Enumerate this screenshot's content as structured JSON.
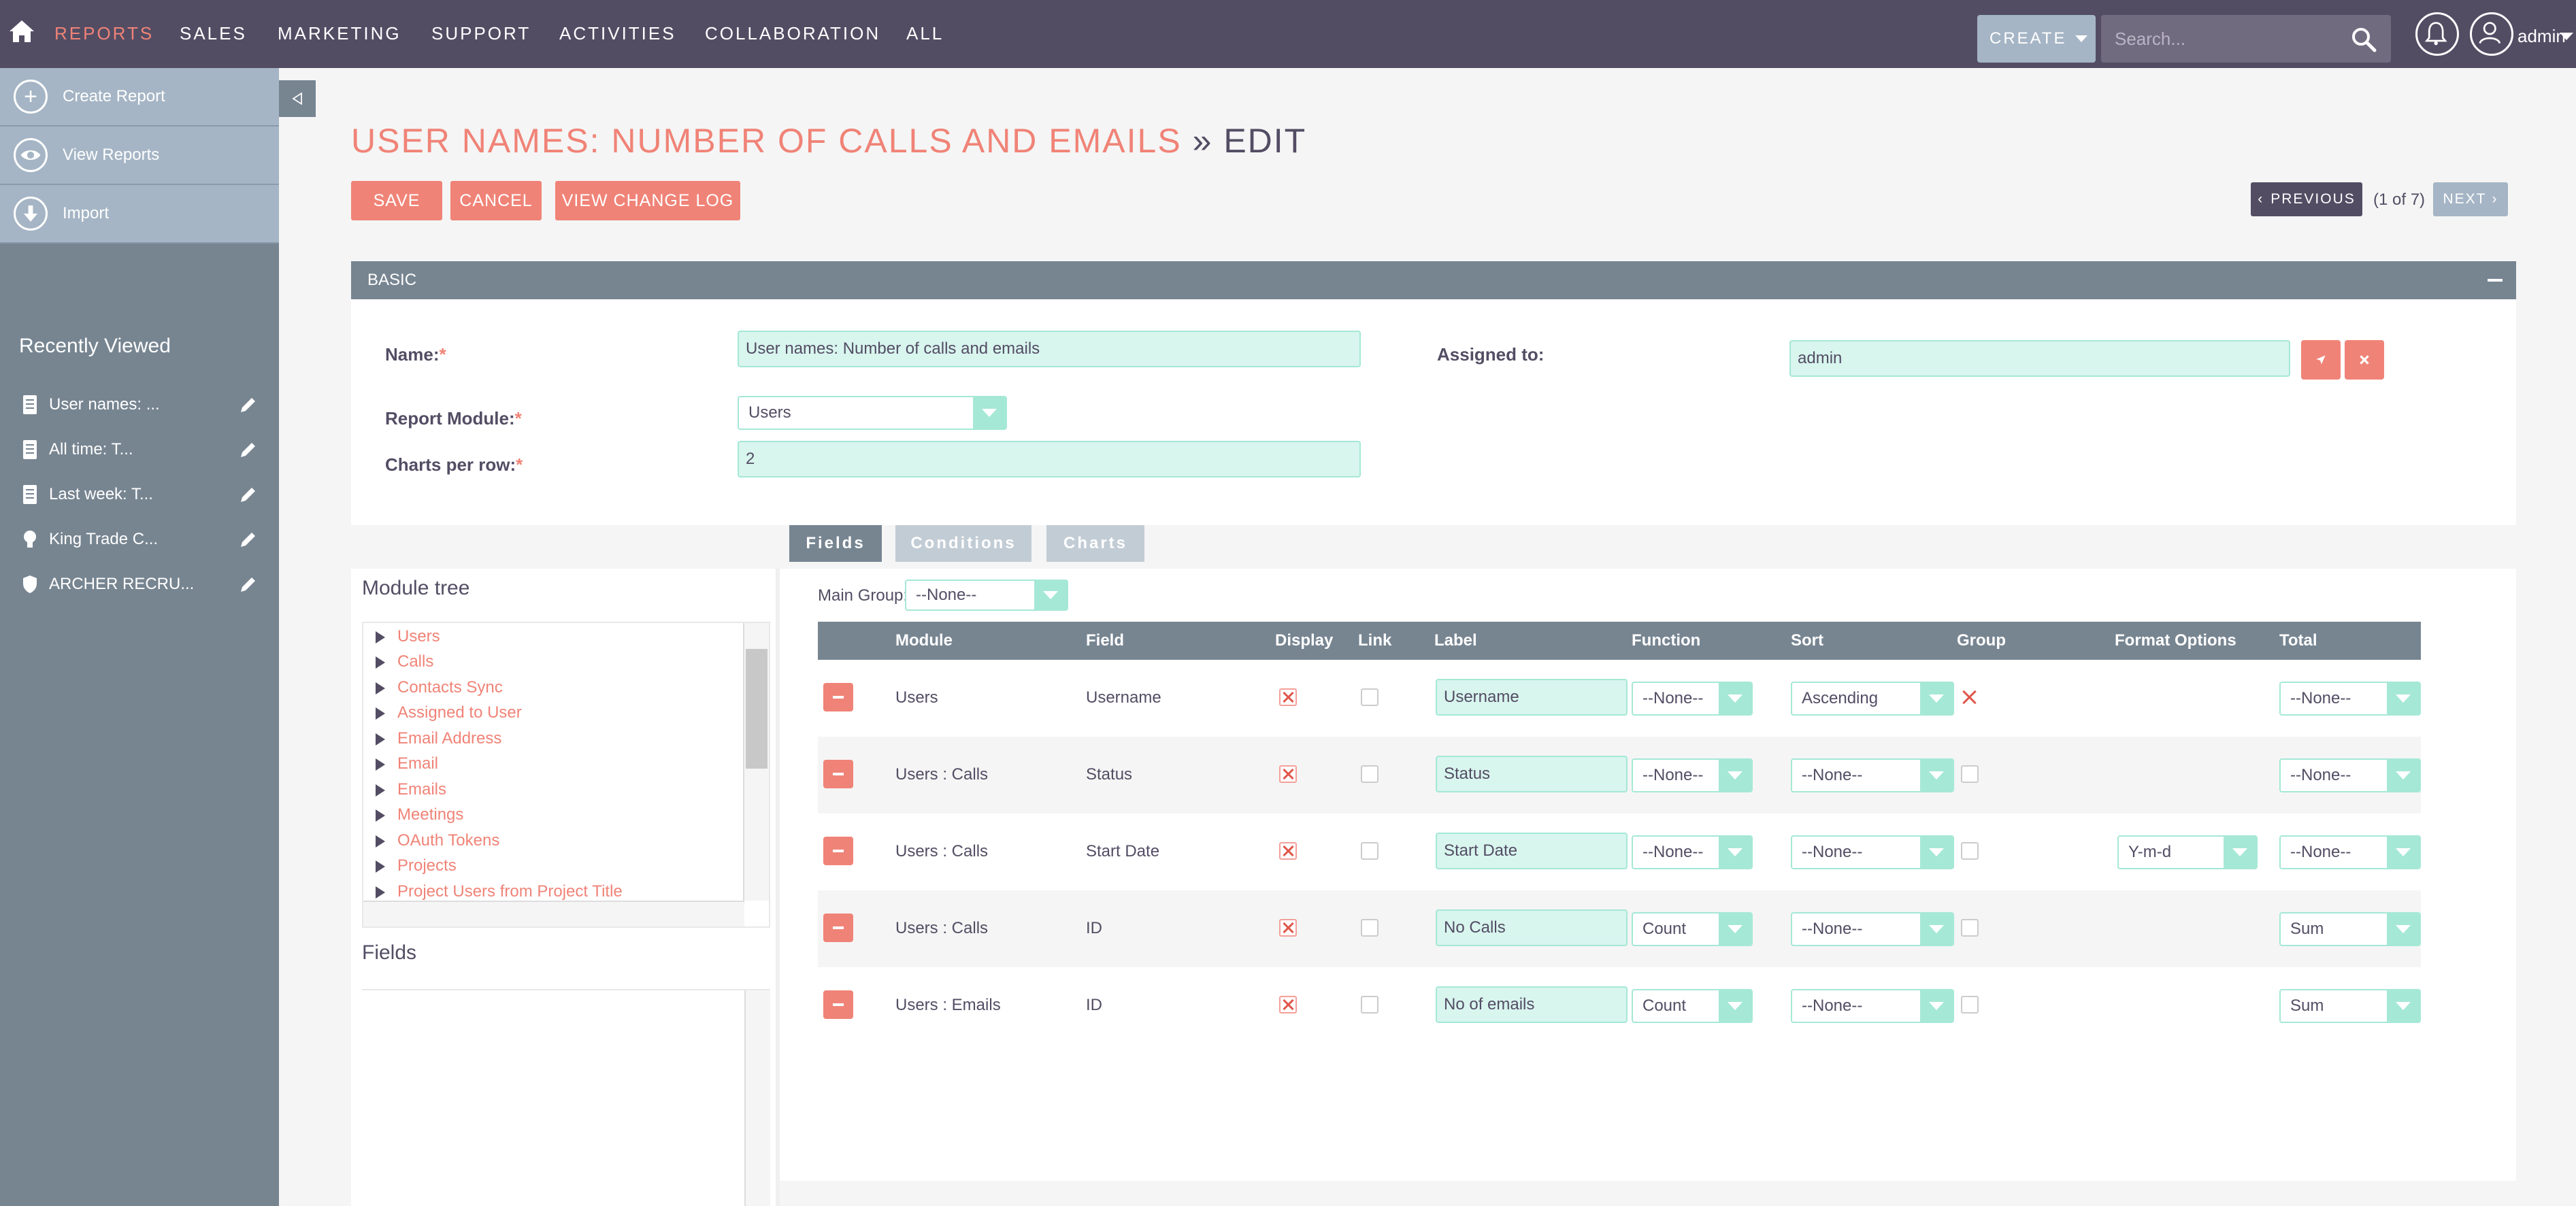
{
  "nav": {
    "items": [
      "REPORTS",
      "SALES",
      "MARKETING",
      "SUPPORT",
      "ACTIVITIES",
      "COLLABORATION",
      "ALL"
    ],
    "create_label": "CREATE",
    "search_placeholder": "Search...",
    "user_label": "admin"
  },
  "sidebar": {
    "actions": [
      {
        "label": "Create Report",
        "icon": "plus-icon"
      },
      {
        "label": "View Reports",
        "icon": "eye-icon"
      },
      {
        "label": "Import",
        "icon": "download-icon"
      }
    ],
    "recent_title": "Recently Viewed",
    "recent": [
      {
        "label": "User names: ...",
        "icon": "report-icon"
      },
      {
        "label": "All time: T...",
        "icon": "report-icon"
      },
      {
        "label": "Last week: T...",
        "icon": "report-icon"
      },
      {
        "label": "King Trade C...",
        "icon": "lightbulb-icon"
      },
      {
        "label": "ARCHER RECRU...",
        "icon": "shield-icon"
      }
    ]
  },
  "page": {
    "title": "USER NAMES: NUMBER OF CALLS AND EMAILS",
    "separator": "»",
    "mode": "EDIT",
    "buttons": {
      "save": "SAVE",
      "cancel": "CANCEL",
      "changelog": "VIEW CHANGE LOG"
    },
    "pager": {
      "previous": "PREVIOUS",
      "next": "NEXT",
      "position": "(1 of 7)"
    }
  },
  "basic": {
    "title": "BASIC",
    "name_label": "Name:",
    "name_value": "User names: Number of calls and emails",
    "assigned_label": "Assigned to:",
    "assigned_value": "admin",
    "module_label": "Report Module:",
    "module_value": "Users",
    "charts_label": "Charts per row:",
    "charts_value": "2",
    "required_mark": "*"
  },
  "tabs": [
    "Fields",
    "Conditions",
    "Charts"
  ],
  "module_tree": {
    "title": "Module tree",
    "items": [
      "Users",
      "Calls",
      "Contacts Sync",
      "Assigned to User",
      "Email Address",
      "Email",
      "Emails",
      "Meetings",
      "OAuth Tokens",
      "Projects",
      "Project Users from Project Title"
    ]
  },
  "fields_title": "Fields",
  "grid": {
    "main_group_label": "Main Group:",
    "main_group_value": "--None--",
    "columns": [
      "Module",
      "Field",
      "Display",
      "Link",
      "Label",
      "Function",
      "Sort",
      "Group",
      "Format Options",
      "Total"
    ],
    "rows": [
      {
        "module": "Users",
        "field": "Username",
        "display": true,
        "link": false,
        "label": "Username",
        "function": "--None--",
        "sort": "Ascending",
        "group": true,
        "format": "",
        "total": "--None--"
      },
      {
        "module": "Users : Calls",
        "field": "Status",
        "display": true,
        "link": false,
        "label": "Status",
        "function": "--None--",
        "sort": "--None--",
        "group": false,
        "format": "",
        "total": "--None--"
      },
      {
        "module": "Users : Calls",
        "field": "Start Date",
        "display": true,
        "link": false,
        "label": "Start Date",
        "function": "--None--",
        "sort": "--None--",
        "group": false,
        "format": "Y-m-d",
        "total": "--None--"
      },
      {
        "module": "Users : Calls",
        "field": "ID",
        "display": true,
        "link": false,
        "label": "No Calls",
        "function": "Count",
        "sort": "--None--",
        "group": false,
        "format": "",
        "total": "Sum"
      },
      {
        "module": "Users : Emails",
        "field": "ID",
        "display": true,
        "link": false,
        "label": "No of emails",
        "function": "Count",
        "sort": "--None--",
        "group": false,
        "format": "",
        "total": "Sum"
      }
    ]
  },
  "colors": {
    "accent": "#f08377",
    "nav_bg": "#534d64",
    "sidebar_bg": "#778591",
    "input_bg": "#d8f5ee",
    "input_border": "#a5e8d6"
  }
}
